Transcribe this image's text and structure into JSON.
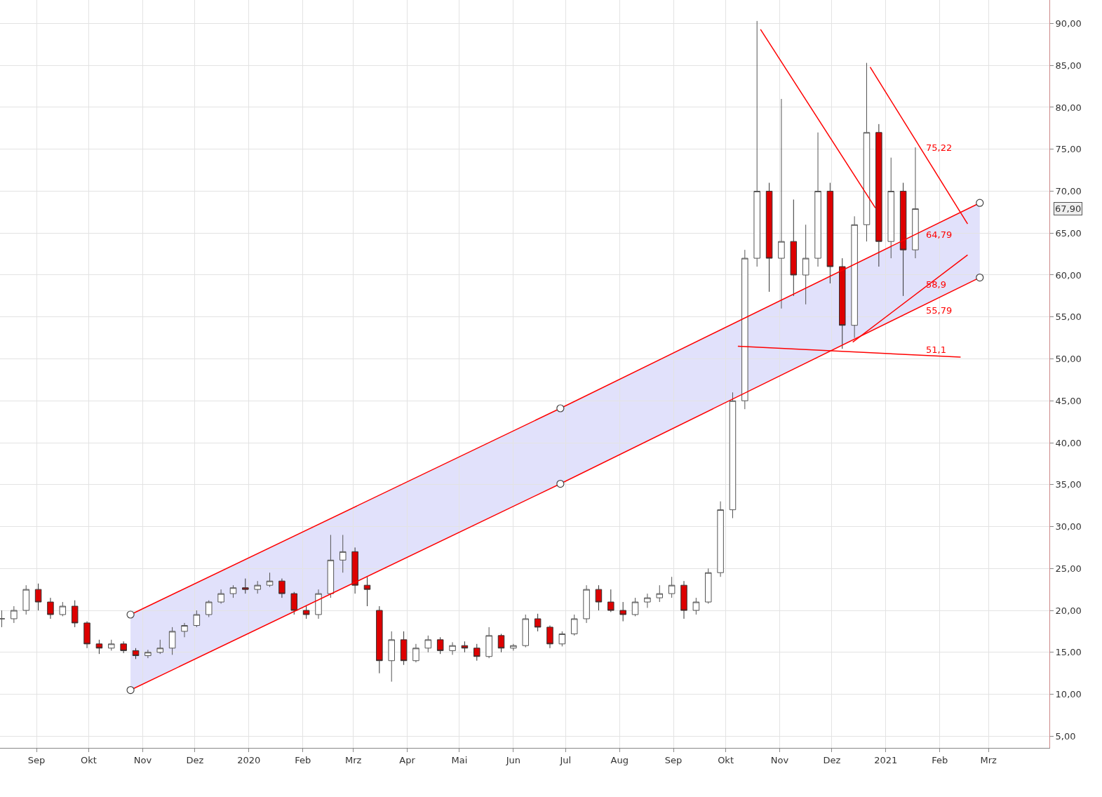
{
  "chart_data": {
    "type": "candlestick",
    "x": [
      "2019-08-12",
      "2019-08-19",
      "2019-08-26",
      "2019-09-02",
      "2019-09-09",
      "2019-09-16",
      "2019-09-23",
      "2019-09-30",
      "2019-10-07",
      "2019-10-14",
      "2019-10-21",
      "2019-10-28",
      "2019-11-04",
      "2019-11-11",
      "2019-11-18",
      "2019-11-25",
      "2019-12-02",
      "2019-12-09",
      "2019-12-16",
      "2019-12-23",
      "2019-12-30",
      "2020-01-06",
      "2020-01-13",
      "2020-01-20",
      "2020-01-27",
      "2020-02-03",
      "2020-02-10",
      "2020-02-17",
      "2020-02-24",
      "2020-03-02",
      "2020-03-09",
      "2020-03-16",
      "2020-03-23",
      "2020-03-30",
      "2020-04-06",
      "2020-04-13",
      "2020-04-20",
      "2020-04-27",
      "2020-05-04",
      "2020-05-11",
      "2020-05-18",
      "2020-05-25",
      "2020-06-01",
      "2020-06-08",
      "2020-06-15",
      "2020-06-22",
      "2020-06-29",
      "2020-07-06",
      "2020-07-13",
      "2020-07-20",
      "2020-07-27",
      "2020-08-03",
      "2020-08-10",
      "2020-08-17",
      "2020-08-24",
      "2020-08-31",
      "2020-09-07",
      "2020-09-14",
      "2020-09-21",
      "2020-09-28",
      "2020-10-05",
      "2020-10-12",
      "2020-10-19",
      "2020-10-26",
      "2020-11-02",
      "2020-11-09",
      "2020-11-16",
      "2020-11-23",
      "2020-11-30",
      "2020-12-07",
      "2020-12-14",
      "2020-12-21",
      "2020-12-28",
      "2021-01-04",
      "2021-01-11",
      "2021-01-18"
    ],
    "ohlc": [
      [
        19,
        20,
        18,
        19
      ],
      [
        19,
        20.5,
        18.5,
        20
      ],
      [
        20,
        23,
        19.5,
        22.5
      ],
      [
        22.5,
        23.2,
        20,
        21
      ],
      [
        21,
        21.5,
        19,
        19.5
      ],
      [
        19.5,
        21,
        19.3,
        20.5
      ],
      [
        20.5,
        21.2,
        18,
        18.5
      ],
      [
        18.5,
        18.7,
        15.5,
        16
      ],
      [
        16,
        16.5,
        14.8,
        15.5
      ],
      [
        15.5,
        16.5,
        15.2,
        16
      ],
      [
        16,
        16.3,
        14.9,
        15.2
      ],
      [
        15.2,
        15.5,
        14.2,
        14.6
      ],
      [
        14.6,
        15.3,
        14.3,
        15
      ],
      [
        15,
        16.5,
        14.8,
        15.5
      ],
      [
        15.5,
        18,
        14.7,
        17.5
      ],
      [
        17.5,
        18.5,
        16.8,
        18.2
      ],
      [
        18.2,
        20,
        18,
        19.5
      ],
      [
        19.5,
        21.2,
        19.2,
        21
      ],
      [
        21,
        22.5,
        20.8,
        22
      ],
      [
        22,
        23,
        21.5,
        22.7
      ],
      [
        22.7,
        23.8,
        22,
        22.5
      ],
      [
        22.5,
        23.5,
        22,
        23
      ],
      [
        23,
        24.5,
        22.8,
        23.5
      ],
      [
        23.5,
        23.8,
        21.5,
        22
      ],
      [
        22,
        22.2,
        19.5,
        20
      ],
      [
        20,
        20.5,
        19,
        19.5
      ],
      [
        19.5,
        22.5,
        19,
        22
      ],
      [
        22,
        29,
        21.5,
        26
      ],
      [
        26,
        29,
        24.5,
        27
      ],
      [
        27,
        27.5,
        22,
        23
      ],
      [
        23,
        24,
        20.5,
        22.5
      ],
      [
        20,
        20.5,
        12.5,
        14
      ],
      [
        14,
        17.5,
        11.5,
        16.5
      ],
      [
        16.5,
        17.5,
        13.5,
        14
      ],
      [
        14,
        16,
        13.8,
        15.5
      ],
      [
        15.5,
        17,
        15,
        16.5
      ],
      [
        16.5,
        16.8,
        14.8,
        15.2
      ],
      [
        15.2,
        16.2,
        14.7,
        15.8
      ],
      [
        15.8,
        16.3,
        15,
        15.5
      ],
      [
        15.5,
        16,
        14,
        14.5
      ],
      [
        14.5,
        18,
        14.3,
        17
      ],
      [
        17,
        17.2,
        15,
        15.5
      ],
      [
        15.5,
        16,
        15.2,
        15.8
      ],
      [
        15.8,
        19.5,
        15.6,
        19
      ],
      [
        19,
        19.6,
        17.5,
        18
      ],
      [
        18,
        18.2,
        15.5,
        16
      ],
      [
        16,
        17.5,
        15.7,
        17.2
      ],
      [
        17.2,
        19.5,
        17,
        19
      ],
      [
        19,
        23,
        18.5,
        22.5
      ],
      [
        22.5,
        23,
        20,
        21
      ],
      [
        21,
        22.5,
        19.8,
        20
      ],
      [
        20,
        21,
        18.7,
        19.5
      ],
      [
        19.5,
        21.5,
        19.3,
        21
      ],
      [
        21,
        22,
        20.3,
        21.5
      ],
      [
        21.5,
        23,
        21,
        22
      ],
      [
        22,
        24,
        21.5,
        23
      ],
      [
        23,
        23.5,
        19,
        20
      ],
      [
        20,
        21.5,
        19.5,
        21
      ],
      [
        21,
        25,
        20.8,
        24.5
      ],
      [
        24.5,
        33,
        24,
        32
      ],
      [
        32,
        46,
        31,
        45
      ],
      [
        45,
        63,
        44,
        62
      ],
      [
        62,
        90.3,
        61,
        70
      ],
      [
        70,
        71,
        58,
        62
      ],
      [
        62,
        81,
        56,
        64
      ],
      [
        64,
        69,
        57.5,
        60
      ],
      [
        60,
        66,
        56.5,
        62
      ],
      [
        62,
        77,
        61,
        70
      ],
      [
        70,
        71,
        59,
        61
      ],
      [
        61,
        62,
        51.2,
        54
      ],
      [
        54,
        67,
        52.5,
        66
      ],
      [
        66,
        85.3,
        64,
        77
      ],
      [
        77,
        78,
        61,
        64
      ],
      [
        64,
        74,
        62,
        70
      ],
      [
        70,
        71,
        57.5,
        63
      ],
      [
        63,
        75.22,
        62,
        67.9
      ]
    ],
    "series": [
      {
        "type": "line",
        "color": "#ff0000",
        "marker": "circle",
        "x": [
          "2019-10-25",
          "2020-06-28",
          "2021-02-24"
        ],
        "values": [
          19.5,
          44.1,
          68.6
        ],
        "lower": [
          10.5,
          35.1,
          59.7
        ],
        "upper": [
          19.5,
          44.1,
          68.6
        ]
      },
      {
        "type": "line",
        "color": "#ff0000",
        "marker": "circle",
        "x": [
          "2019-10-25",
          "2020-06-28",
          "2021-02-24"
        ],
        "values": [
          10.5,
          35.1,
          59.7
        ]
      },
      {
        "type": "line",
        "color": "#ff0000",
        "x": [
          "2020-10-21",
          "2020-12-26"
        ],
        "values": [
          89.3,
          68.0
        ]
      },
      {
        "type": "line",
        "color": "#ff0000",
        "x": [
          "2020-12-23",
          "2021-02-17"
        ],
        "values": [
          84.8,
          66.1
        ]
      },
      {
        "type": "line",
        "color": "#ff0000",
        "x": [
          "2020-12-13",
          "2021-02-17"
        ],
        "values": [
          52.0,
          62.4
        ]
      },
      {
        "type": "line",
        "color": "#ff0000",
        "x": [
          "2020-10-08",
          "2021-02-13"
        ],
        "values": [
          51.5,
          50.2
        ]
      }
    ],
    "annotations": [
      {
        "text": "75,22",
        "x": "2021-01-18",
        "y": 75.22
      },
      {
        "text": "64,79",
        "x": "2021-01-18",
        "y": 64.79
      },
      "58,9",
      {
        "text": "55,79",
        "x": "2021-01-18",
        "y": 55.79
      },
      "51,1",
      "67,90"
    ],
    "xlim": [
      "2019-08-11",
      "2021-04-05"
    ],
    "xticks": [
      {
        "value": "2019-09-01",
        "label": "Sep"
      },
      {
        "value": "2019-10-01",
        "label": "Okt"
      },
      {
        "value": "2019-11-01",
        "label": "Nov"
      },
      {
        "value": "2019-12-01",
        "label": "Dez"
      },
      {
        "value": "2020-01-01",
        "label": "2020"
      },
      {
        "value": "2020-02-01",
        "label": "Feb"
      },
      {
        "value": "2020-03-01",
        "label": "Mrz"
      },
      {
        "value": "2020-04-01",
        "label": "Apr"
      },
      {
        "value": "2020-05-01",
        "label": "Mai"
      },
      {
        "value": "2020-06-01",
        "label": "Jun"
      },
      {
        "value": "2020-07-01",
        "label": "Jul"
      },
      {
        "value": "2020-08-01",
        "label": "Aug"
      },
      {
        "value": "2020-09-01",
        "label": "Sep"
      },
      {
        "value": "2020-10-01",
        "label": "Okt"
      },
      {
        "value": "2020-11-01",
        "label": "Nov"
      },
      {
        "value": "2020-12-01",
        "label": "Dez"
      },
      {
        "value": "2021-01-01",
        "label": "2021"
      },
      {
        "value": "2021-02-01",
        "label": "Feb"
      },
      {
        "value": "2021-03-01",
        "label": "Mrz"
      }
    ],
    "ylim": [
      3.6,
      92.8
    ],
    "yticks": [
      {
        "value": 5,
        "label": "5,00"
      },
      {
        "value": 10,
        "label": "10,00"
      },
      {
        "value": 15,
        "label": "15,00"
      },
      {
        "value": 20,
        "label": "20,00"
      },
      {
        "value": 25,
        "label": "25,00"
      },
      {
        "value": 30,
        "label": "30,00"
      },
      {
        "value": 35,
        "label": "35,00"
      },
      {
        "value": 40,
        "label": "40,00"
      },
      {
        "value": 45,
        "label": "45,00"
      },
      {
        "value": 50,
        "label": "50,00"
      },
      {
        "value": 55,
        "label": "55,00"
      },
      {
        "value": 60,
        "label": "60,00"
      },
      {
        "value": 65,
        "label": "65,00"
      },
      {
        "value": 70,
        "label": "70,00"
      },
      {
        "value": 75,
        "label": "75,00"
      },
      {
        "value": 80,
        "label": "80,00"
      },
      {
        "value": 85,
        "label": "85,00"
      },
      {
        "value": 90,
        "label": "90,00"
      }
    ],
    "grid": true
  }
}
